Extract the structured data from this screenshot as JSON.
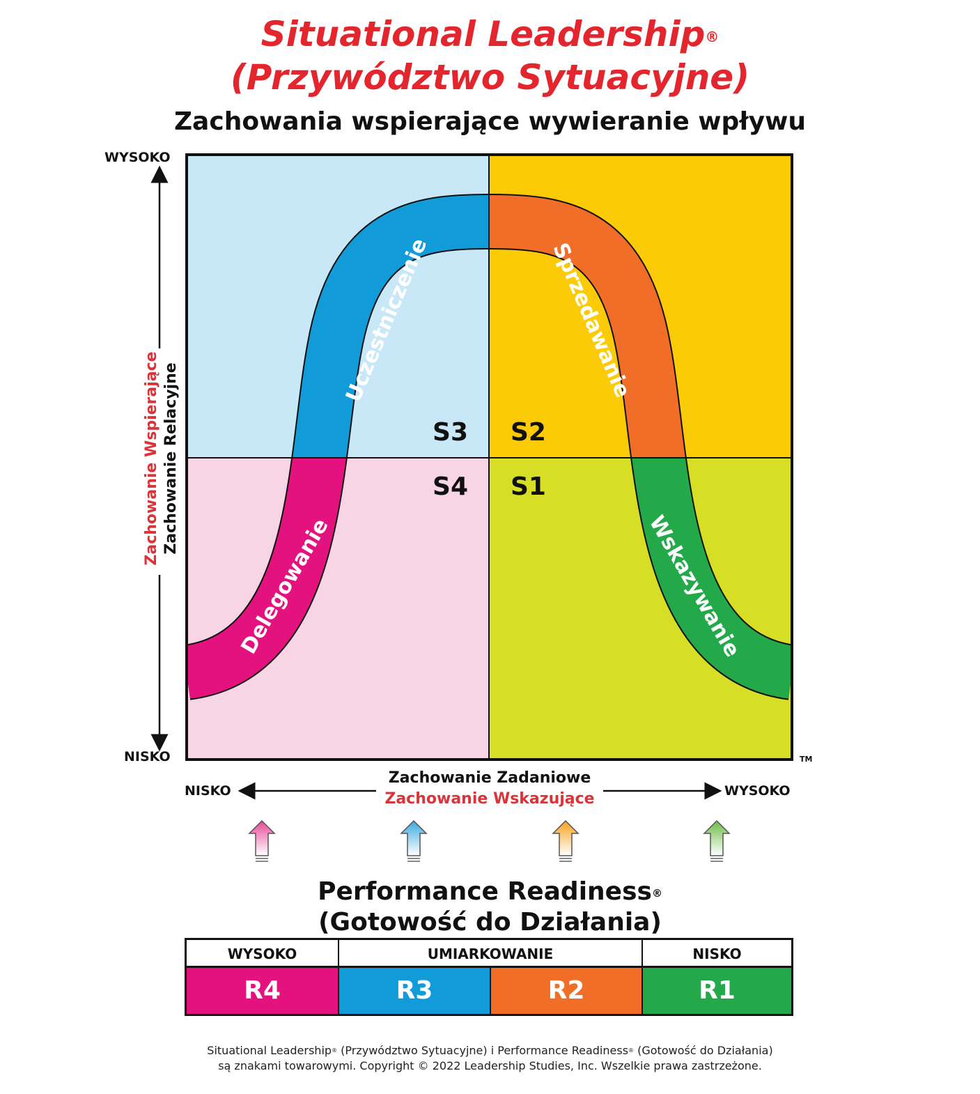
{
  "header": {
    "title_line1": "Situational Leadership",
    "title_reg": "®",
    "title_line2": "(Przywództwo Sytuacyjne)",
    "subtitle": "Zachowania wspierające wywieranie wpływu"
  },
  "y_axis": {
    "high": "WYSOKO",
    "low": "NISKO",
    "label_red": "Zachowanie Wspierające",
    "label_black": "Zachowanie Relacyjne"
  },
  "x_axis": {
    "low": "NISKO",
    "high": "WYSOKO",
    "label_black": "Zachowanie Zadaniowe",
    "label_red": "Zachowanie Wskazujące"
  },
  "trademark": "TM",
  "quadrants": [
    {
      "code": "S3",
      "color": "#c8e8f8"
    },
    {
      "code": "S2",
      "color": "#fccb07"
    },
    {
      "code": "S4",
      "color": "#f8d5e4"
    },
    {
      "code": "S1",
      "color": "#d6df26"
    }
  ],
  "curve_segments": [
    {
      "label": "Delegowanie",
      "color": "#e3127f"
    },
    {
      "label": "Uczestniczenie",
      "color": "#119cd9"
    },
    {
      "label": "Sprzedawanie",
      "color": "#f06e27"
    },
    {
      "label": "Wskazywanie",
      "color": "#23a94a"
    }
  ],
  "arrow_colors": [
    "#e8489a",
    "#3aa9df",
    "#f7a21b",
    "#6cbd45"
  ],
  "readiness": {
    "title_line1": "Performance Readiness",
    "title_reg": "®",
    "title_line2": "(Gotowość do Działania)",
    "headers": [
      "WYSOKO",
      "UMIARKOWANIE",
      "NISKO"
    ],
    "levels": [
      {
        "code": "R4",
        "color": "#e3127f"
      },
      {
        "code": "R3",
        "color": "#119cd9"
      },
      {
        "code": "R2",
        "color": "#f06e27"
      },
      {
        "code": "R1",
        "color": "#23a94a"
      }
    ]
  },
  "footer": {
    "line1_a": "Situational Leadership",
    "line1_reg1": "®",
    "line1_b": " (Przywództwo Sytuacyjne) i Performance Readiness",
    "line1_reg2": "®",
    "line1_c": " (Gotowość do Działania)",
    "line2": "są znakami towarowymi. Copyright © 2022 Leadership Studies, Inc. Wszelkie prawa zastrzeżone."
  }
}
